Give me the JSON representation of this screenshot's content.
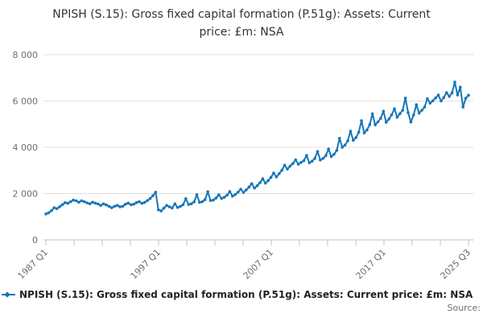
{
  "title": "NPISH (S.15): Gross fixed capital formation (P.51g): Assets: Current price: £m: NSA",
  "source_label": "Source:",
  "legend": {
    "label": "NPISH (S.15): Gross fixed capital formation (P.51g): Assets: Current price: £m: NSA",
    "marker": "line-with-diamond-marker"
  },
  "colors": {
    "line": "#1776b8",
    "grid": "#e0e0e0",
    "axis": "#b3c3da",
    "axis_text": "#6e6e6e",
    "title_text": "#333333",
    "legend_text": "#222222",
    "source_text": "#707070"
  },
  "chart_data": {
    "type": "line",
    "title": "NPISH (S.15): Gross fixed capital formation (P.51g): Assets: Current price: £m: NSA",
    "xlabel": "",
    "ylabel": "",
    "ylim": [
      0,
      8000
    ],
    "y_ticks": [
      0,
      2000,
      4000,
      6000,
      8000
    ],
    "y_tick_labels": [
      "0",
      "2 000",
      "4 000",
      "6 000",
      "8 000"
    ],
    "x_tick_labels": [
      "1987 Q1",
      "1997 Q1",
      "2007 Q1",
      "2017 Q1",
      "2025 Q3"
    ],
    "x_label_tick_indices": [
      0,
      4,
      8,
      12,
      15
    ],
    "x_minor_tick_count": 16,
    "grid": "horizontal",
    "legend_position": "bottom-left",
    "series": [
      {
        "name": "NPISH (S.15): Gross fixed capital formation (P.51g): Assets: Current price: £m: NSA",
        "color": "#1776b8",
        "start": "1987 Q1",
        "end": "2025 Q3",
        "frequency": "quarterly",
        "values": [
          1120,
          1170,
          1260,
          1390,
          1350,
          1430,
          1520,
          1610,
          1580,
          1650,
          1720,
          1690,
          1630,
          1690,
          1650,
          1600,
          1560,
          1630,
          1590,
          1550,
          1490,
          1560,
          1510,
          1450,
          1390,
          1450,
          1490,
          1430,
          1450,
          1540,
          1590,
          1520,
          1540,
          1610,
          1650,
          1580,
          1620,
          1700,
          1790,
          1910,
          2060,
          1300,
          1250,
          1370,
          1490,
          1430,
          1380,
          1560,
          1400,
          1450,
          1520,
          1780,
          1530,
          1560,
          1640,
          1950,
          1620,
          1650,
          1740,
          2080,
          1700,
          1720,
          1810,
          1950,
          1790,
          1840,
          1930,
          2090,
          1890,
          1960,
          2060,
          2190,
          2050,
          2160,
          2280,
          2430,
          2240,
          2340,
          2470,
          2640,
          2450,
          2560,
          2700,
          2890,
          2720,
          2860,
          3010,
          3230,
          3060,
          3190,
          3300,
          3460,
          3270,
          3350,
          3420,
          3650,
          3330,
          3400,
          3520,
          3820,
          3450,
          3520,
          3640,
          3930,
          3600,
          3700,
          3870,
          4390,
          4000,
          4100,
          4280,
          4700,
          4300,
          4420,
          4650,
          5150,
          4620,
          4750,
          4980,
          5450,
          4970,
          5100,
          5250,
          5560,
          5080,
          5220,
          5400,
          5670,
          5300,
          5450,
          5600,
          6130,
          5500,
          5090,
          5400,
          5840,
          5480,
          5600,
          5740,
          6100,
          5910,
          6010,
          6130,
          6260,
          6000,
          6150,
          6365,
          6200,
          6350,
          6820,
          6260,
          6600,
          5740,
          6120,
          6250
        ]
      }
    ]
  }
}
